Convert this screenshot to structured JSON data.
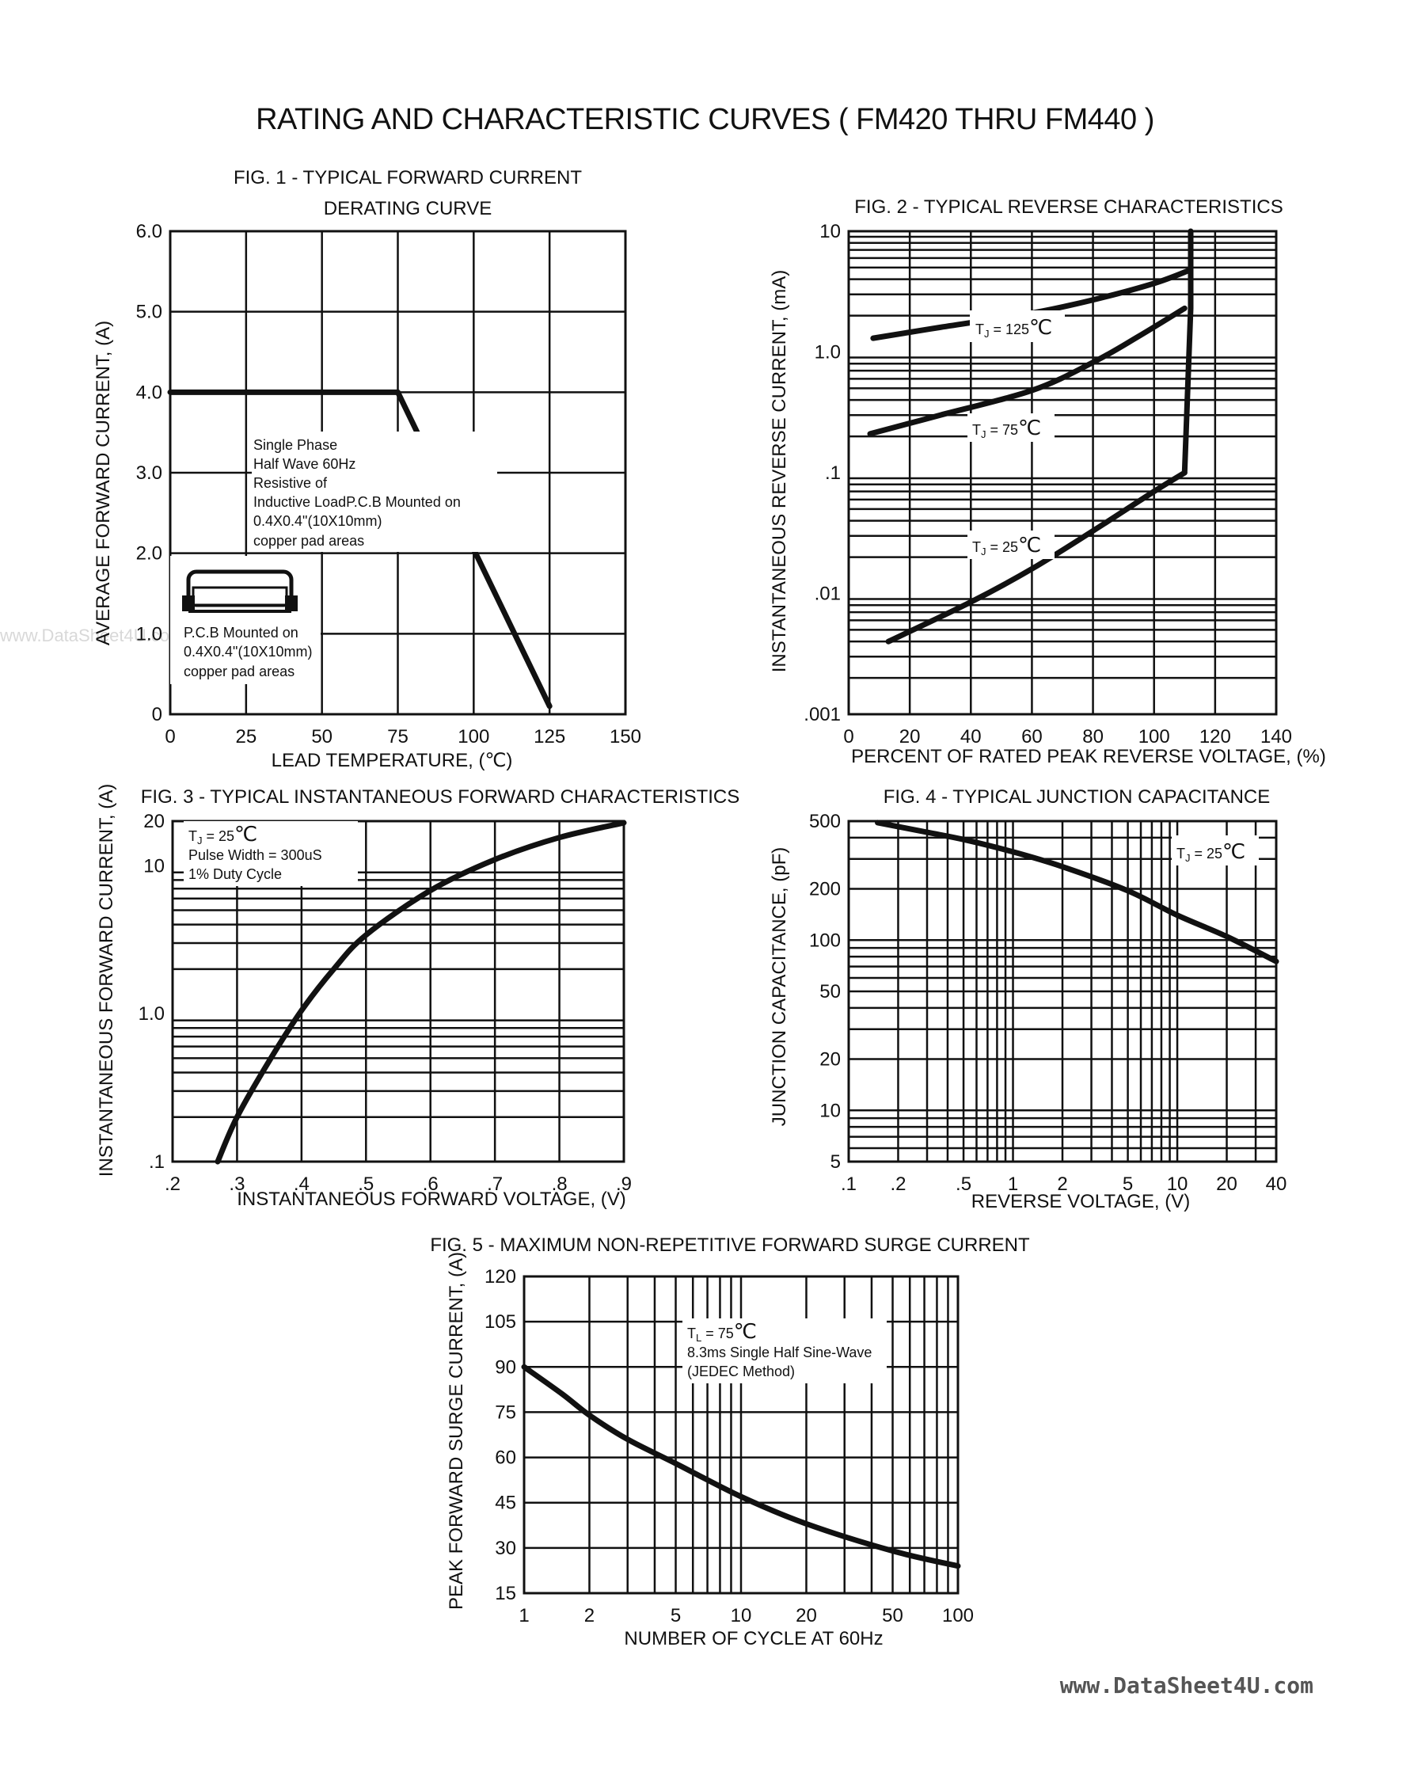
{
  "page": {
    "title": "RATING AND CHARACTERISTIC CURVES ( FM420 THRU FM440 )",
    "watermark": "www.DataSheet4U.com",
    "side_watermark": "www.DataSheet4U.com"
  },
  "chart_data": [
    {
      "id": "fig1",
      "type": "line",
      "title": "FIG. 1 - TYPICAL FORWARD CURRENT",
      "subtitle": "DERATING CURVE",
      "xlabel": "LEAD TEMPERATURE, (℃)",
      "ylabel": "AVERAGE FORWARD CURRENT, (A)",
      "xlim": [
        0,
        150
      ],
      "ylim": [
        0,
        6
      ],
      "xticks": [
        0,
        25,
        50,
        75,
        100,
        125,
        150
      ],
      "xtick_labels": [
        "0",
        "25",
        "50",
        "75",
        "100",
        "125",
        "150"
      ],
      "yticks": [
        0,
        1,
        2,
        3,
        4,
        5,
        6
      ],
      "ytick_labels": [
        "0",
        "1.0",
        "2.0",
        "3.0",
        "4.0",
        "5.0",
        "6.0"
      ],
      "grid": true,
      "series": [
        {
          "x": [
            0,
            75,
            125
          ],
          "y": [
            4.0,
            4.0,
            0.1
          ]
        }
      ],
      "annotations": [
        {
          "lines": [
            "Single Phase",
            "Half Wave 60Hz",
            "Resistive of",
            "Inductive LoadP.C.B Mounted on",
            "0.4X0.4\"(10X10mm)",
            "copper pad areas"
          ]
        },
        {
          "lines": [
            "P.C.B Mounted on",
            "0.4X0.4\"(10X10mm)",
            "copper pad areas"
          ]
        }
      ]
    },
    {
      "id": "fig2",
      "type": "line",
      "title": "FIG. 2 - TYPICAL REVERSE CHARACTERISTICS",
      "xlabel": "PERCENT OF RATED PEAK REVERSE VOLTAGE, (%)",
      "ylabel": "INSTANTANEOUS REVERSE CURRENT, (mA)",
      "xlim": [
        0,
        140
      ],
      "ylim": [
        0.001,
        10
      ],
      "y_scale": "log",
      "xticks": [
        0,
        20,
        40,
        60,
        80,
        100,
        120,
        140
      ],
      "xtick_labels": [
        "0",
        "20",
        "40",
        "60",
        "80",
        "100",
        "120",
        "140"
      ],
      "yticks": [
        0.001,
        0.01,
        0.1,
        1,
        10
      ],
      "ytick_labels": [
        ".001",
        ".01",
        ".1",
        "1.0",
        "10"
      ],
      "grid": true,
      "series": [
        {
          "label": "TJ = 125℃",
          "x": [
            8,
            30,
            60,
            80,
            100,
            112
          ],
          "y": [
            1.3,
            1.6,
            2.1,
            2.7,
            3.7,
            4.8
          ]
        },
        {
          "label": "TJ = 75℃",
          "x": [
            7,
            30,
            60,
            80,
            95,
            110
          ],
          "y": [
            0.21,
            0.3,
            0.48,
            0.82,
            1.35,
            2.3
          ]
        },
        {
          "label": "TJ = 25℃",
          "x": [
            13,
            40,
            60,
            80,
            100,
            110
          ],
          "y": [
            0.004,
            0.0085,
            0.016,
            0.033,
            0.07,
            0.1
          ]
        },
        {
          "label": "",
          "x": [
            110,
            112,
            112
          ],
          "y": [
            0.1,
            2.3,
            10
          ]
        }
      ],
      "series_labels": [
        "T",
        "J",
        " = 125",
        "℃",
        "T",
        "J",
        " = 75",
        "℃",
        "T",
        "J",
        " = 25",
        "℃"
      ]
    },
    {
      "id": "fig3",
      "type": "line",
      "title": "FIG. 3 - TYPICAL INSTANTANEOUS FORWARD CHARACTERISTICS",
      "xlabel": "INSTANTANEOUS FORWARD VOLTAGE, (V)",
      "ylabel": "INSTANTANEOUS FORWARD CURRENT, (A)",
      "xlim": [
        0.2,
        0.9
      ],
      "ylim": [
        0.1,
        20
      ],
      "y_scale": "log",
      "xticks": [
        0.2,
        0.3,
        0.4,
        0.5,
        0.6,
        0.7,
        0.8,
        0.9
      ],
      "xtick_labels": [
        ".2",
        ".3",
        ".4",
        ".5",
        ".6",
        ".7",
        ".8",
        ".9"
      ],
      "yticks": [
        0.1,
        1,
        10,
        20
      ],
      "ytick_labels": [
        ".1",
        "1.0",
        "10",
        "20"
      ],
      "grid": true,
      "series": [
        {
          "x": [
            0.27,
            0.3,
            0.35,
            0.4,
            0.45,
            0.5,
            0.6,
            0.7,
            0.8,
            0.9
          ],
          "y": [
            0.1,
            0.2,
            0.48,
            1.05,
            2.0,
            3.4,
            6.8,
            11,
            15.5,
            19.5
          ]
        }
      ],
      "annotations": [
        {
          "lines": [
            "TJ = 25℃",
            "Pulse Width = 300uS",
            "1% Duty Cycle"
          ]
        }
      ]
    },
    {
      "id": "fig4",
      "type": "line",
      "title": "FIG. 4 - TYPICAL JUNCTION CAPACITANCE",
      "xlabel": "REVERSE VOLTAGE, (V)",
      "ylabel": "JUNCTION CAPACITANCE, (pF)",
      "xlim": [
        0.1,
        40
      ],
      "ylim": [
        5,
        500
      ],
      "x_scale": "log",
      "y_scale": "log",
      "xticks": [
        0.1,
        0.2,
        0.5,
        1,
        2,
        5,
        10,
        20,
        40
      ],
      "xtick_labels": [
        ".1",
        ".2",
        ".5",
        "1",
        "2",
        "5",
        "10",
        "20",
        "40"
      ],
      "yticks": [
        5,
        10,
        20,
        50,
        100,
        200,
        500
      ],
      "ytick_labels": [
        "5",
        "10",
        "20",
        "50",
        "100",
        "200",
        "500"
      ],
      "grid": true,
      "series": [
        {
          "label": "TJ = 25℃",
          "x": [
            0.15,
            0.3,
            0.5,
            1,
            2,
            5,
            10,
            20,
            40
          ],
          "y": [
            490,
            430,
            390,
            330,
            270,
            195,
            140,
            105,
            75
          ]
        }
      ]
    },
    {
      "id": "fig5",
      "type": "line",
      "title": "FIG. 5 - MAXIMUM NON-REPETITIVE FORWARD SURGE CURRENT",
      "xlabel": "NUMBER OF CYCLE AT 60Hz",
      "ylabel": "PEAK FORWARD SURGE CURRENT, (A)",
      "xlim": [
        1,
        100
      ],
      "ylim": [
        15,
        120
      ],
      "x_scale": "log",
      "xticks": [
        1,
        2,
        5,
        10,
        20,
        50,
        100
      ],
      "xtick_labels": [
        "1",
        "2",
        "5",
        "10",
        "20",
        "50",
        "100"
      ],
      "yticks": [
        15,
        30,
        45,
        60,
        75,
        90,
        105,
        120
      ],
      "ytick_labels": [
        "15",
        "30",
        "45",
        "60",
        "75",
        "90",
        "105",
        "120"
      ],
      "grid": true,
      "series": [
        {
          "x": [
            1,
            1.5,
            2,
            3,
            5,
            10,
            20,
            50,
            100
          ],
          "y": [
            90,
            81,
            74,
            66,
            58,
            47,
            38,
            29,
            24
          ]
        }
      ],
      "annotations": [
        {
          "lines": [
            "TL = 75℃",
            "8.3ms Single Half Sine-Wave",
            "(JEDEC Method)"
          ]
        }
      ]
    }
  ],
  "labels": {
    "fig1_note_1": "Single Phase",
    "fig1_note_2": "Half Wave 60Hz",
    "fig1_note_3": "Resistive of",
    "fig1_note_4": "Inductive LoadP.C.B Mounted on",
    "fig1_note_5": "0.4X0.4\"(10X10mm)",
    "fig1_note_6": "copper pad areas",
    "fig1_note2_1": "P.C.B Mounted on",
    "fig1_note2_2": "0.4X0.4\"(10X10mm)",
    "fig1_note2_3": "copper pad areas",
    "tj_t": "T",
    "tj_j": "J",
    "tl_l": "L",
    "tj125": " = 125",
    "tj75": " = 75",
    "tj25": " = 25",
    "tl75": " = 75",
    "degc": "℃",
    "fig3_note_2": "Pulse Width = 300uS",
    "fig3_note_3": "1% Duty Cycle",
    "fig5_note_2": "8.3ms Single Half Sine-Wave",
    "fig5_note_3": "(JEDEC Method)"
  }
}
